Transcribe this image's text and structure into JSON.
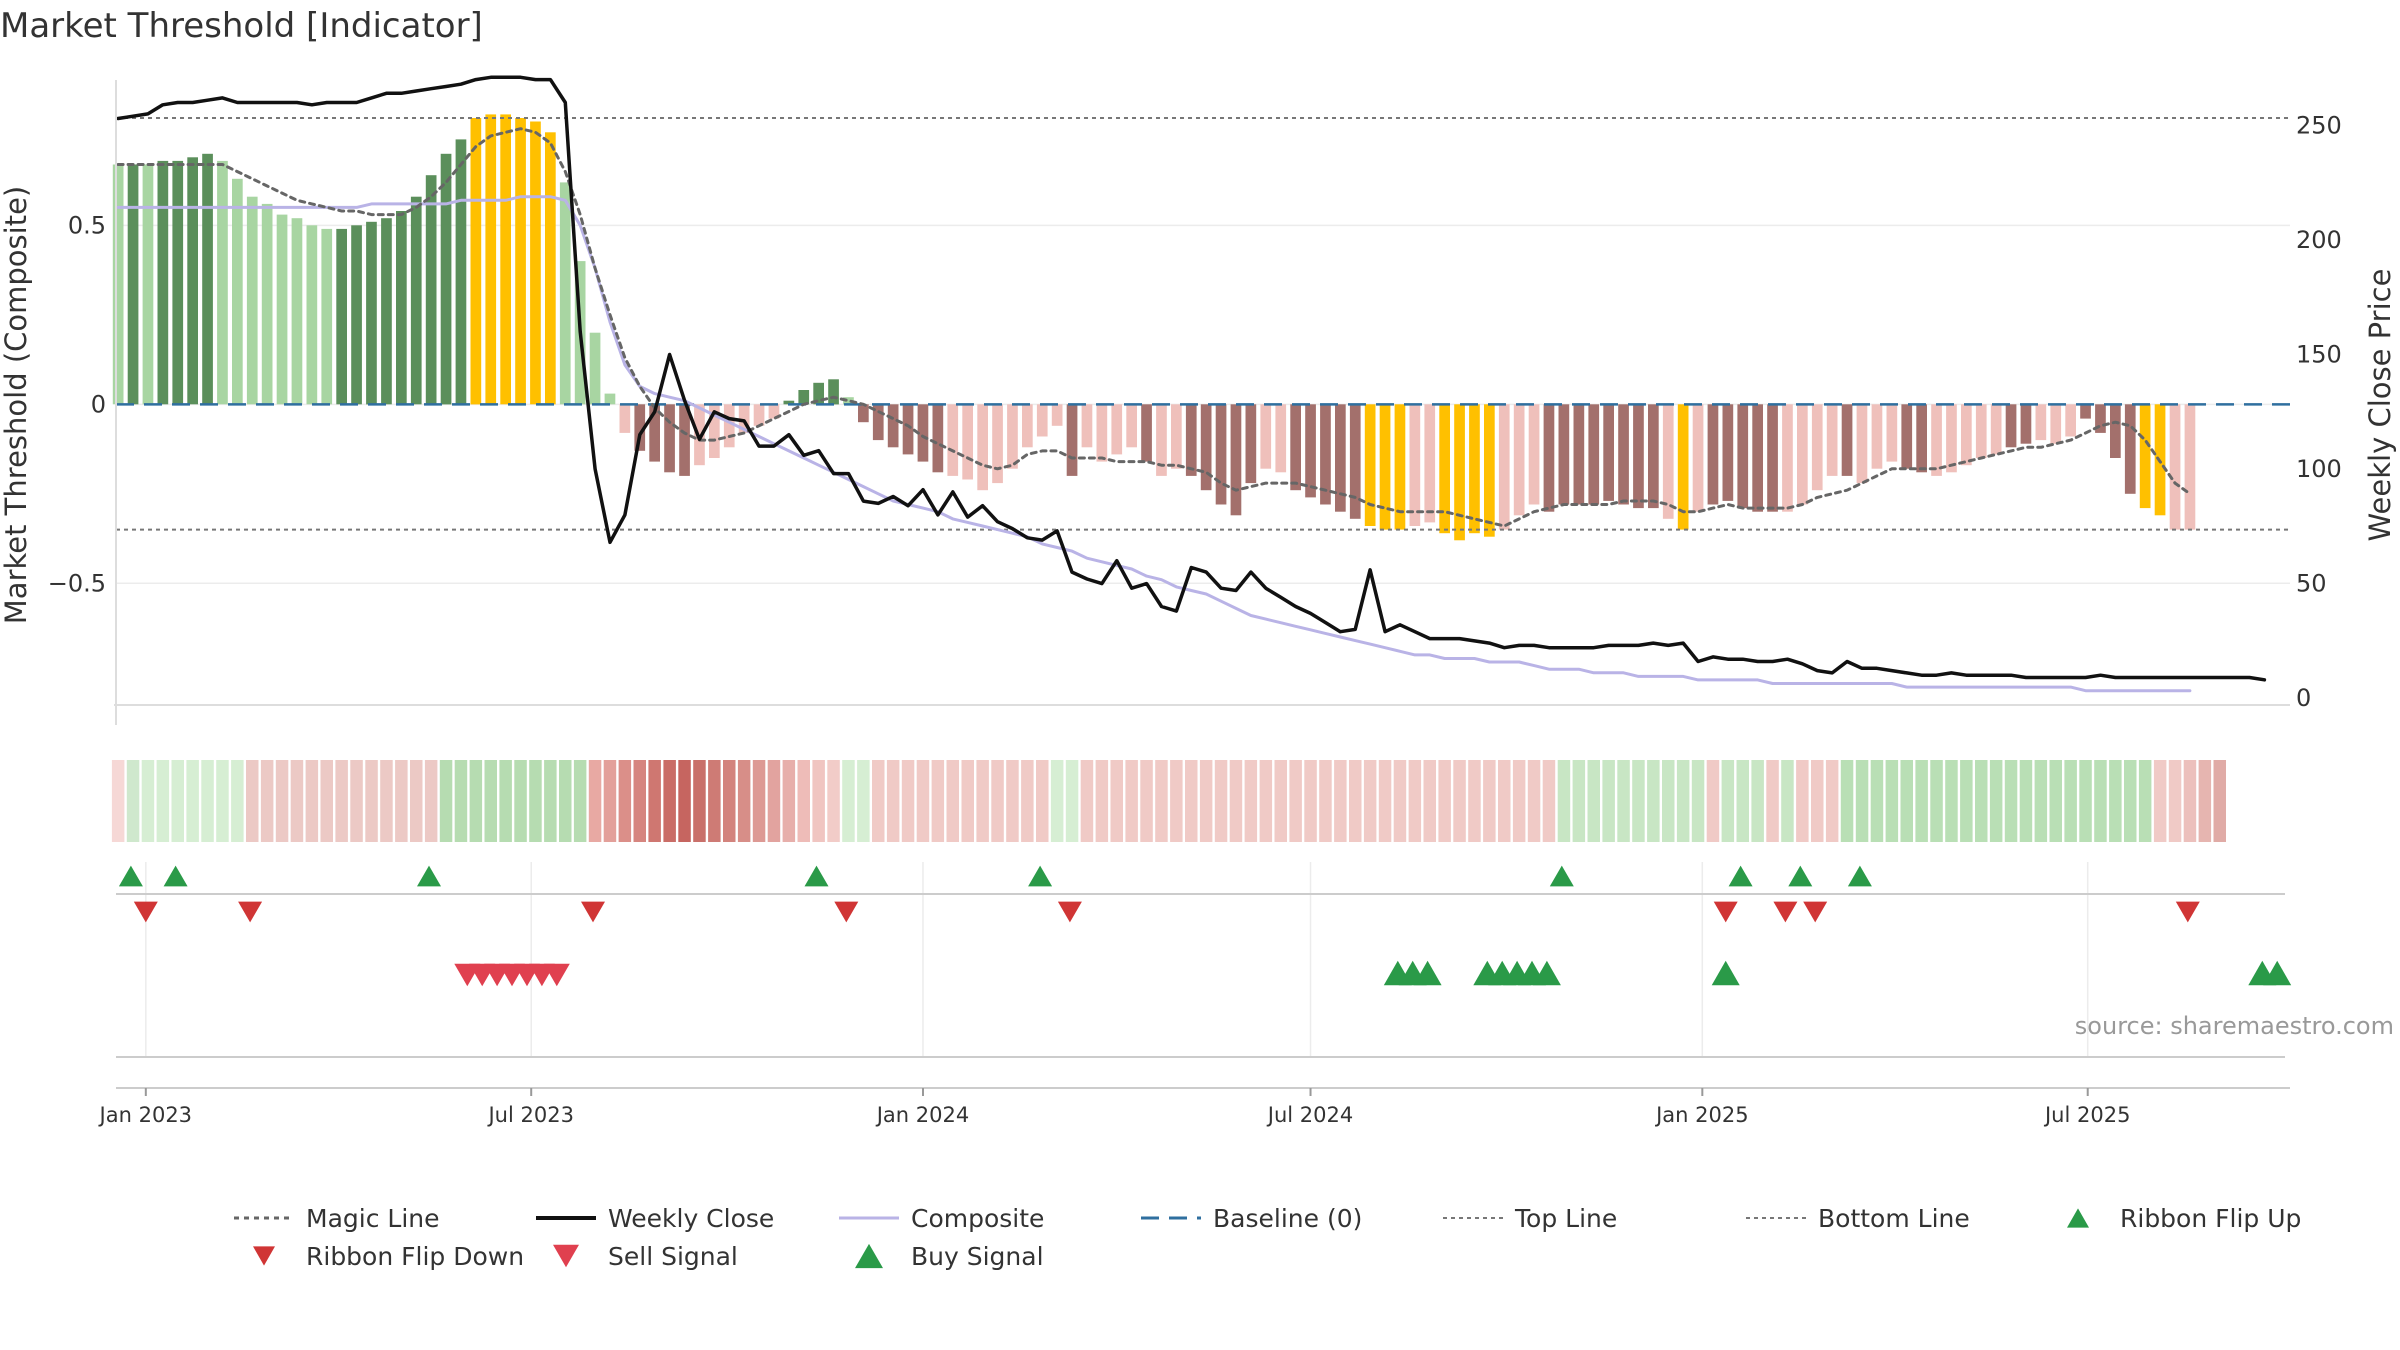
{
  "title": "Market Threshold [Indicator]",
  "source": "source: sharemaestro.com",
  "colors": {
    "bull_strong": "#5b8f5b",
    "bull_weak": "#a8d5a2",
    "bear_strong": "#a3706c",
    "bear_weak": "#efc0bb",
    "extreme": "#ffc000",
    "magic_line": "#666666",
    "weekly_close": "#111111",
    "composite": "#b9b3e6",
    "baseline": "#2f6f9f",
    "threshold_line": "#777777",
    "flip_up": "#2a9a48",
    "flip_down": "#d03535",
    "sell": "#e0404f",
    "buy": "#2a9a48"
  },
  "chart_data": {
    "type": "bar",
    "title": "Market Threshold [Indicator]",
    "ylabel": "Market Threshold (Composite)",
    "y2label": "Weekly Close Price",
    "ylim": [
      -0.84,
      0.92
    ],
    "y2lim": [
      -3,
      272
    ],
    "y_ticks": [
      {
        "value": 0.5,
        "label": "0.5"
      },
      {
        "value": 0,
        "label": "0"
      },
      {
        "value": -0.5,
        "label": "−0.5"
      }
    ],
    "y2_ticks": [
      {
        "value": 250,
        "label": "250"
      },
      {
        "value": 200,
        "label": "200"
      },
      {
        "value": 150,
        "label": "150"
      },
      {
        "value": 100,
        "label": "100"
      },
      {
        "value": 50,
        "label": "50"
      },
      {
        "value": 0,
        "label": "0"
      }
    ],
    "x_start": "2022-12-18",
    "x_end": "2025-10-04",
    "x_ticks": [
      {
        "date": "2023-01-01",
        "label": "Jan 2023"
      },
      {
        "date": "2023-07-01",
        "label": "Jul 2023"
      },
      {
        "date": "2024-01-01",
        "label": "Jan 2024"
      },
      {
        "date": "2024-07-01",
        "label": "Jul 2024"
      },
      {
        "date": "2025-01-01",
        "label": "Jan 2025"
      },
      {
        "date": "2025-07-01",
        "label": "Jul 2025"
      }
    ],
    "bars_start": "2022-12-19",
    "bar_interval_days": 7,
    "top_line": 0.8,
    "bottom_line": -0.35,
    "baseline": 0,
    "composite_values": [
      0.67,
      0.67,
      0.67,
      0.68,
      0.68,
      0.69,
      0.7,
      0.68,
      0.63,
      0.58,
      0.56,
      0.53,
      0.52,
      0.5,
      0.49,
      0.49,
      0.5,
      0.51,
      0.52,
      0.54,
      0.58,
      0.64,
      0.7,
      0.74,
      0.8,
      0.81,
      0.81,
      0.8,
      0.79,
      0.76,
      0.62,
      0.4,
      0.2,
      0.03,
      -0.08,
      -0.13,
      -0.16,
      -0.19,
      -0.2,
      -0.17,
      -0.15,
      -0.12,
      -0.08,
      -0.06,
      -0.04,
      0.01,
      0.04,
      0.06,
      0.07,
      0.02,
      -0.05,
      -0.1,
      -0.12,
      -0.14,
      -0.16,
      -0.19,
      -0.2,
      -0.21,
      -0.24,
      -0.22,
      -0.18,
      -0.12,
      -0.09,
      -0.06,
      -0.2,
      -0.12,
      -0.16,
      -0.14,
      -0.12,
      -0.16,
      -0.2,
      -0.18,
      -0.2,
      -0.24,
      -0.28,
      -0.31,
      -0.22,
      -0.18,
      -0.19,
      -0.24,
      -0.26,
      -0.28,
      -0.3,
      -0.32,
      -0.34,
      -0.35,
      -0.35,
      -0.34,
      -0.33,
      -0.36,
      -0.38,
      -0.36,
      -0.37,
      -0.35,
      -0.31,
      -0.28,
      -0.3,
      -0.28,
      -0.28,
      -0.28,
      -0.27,
      -0.28,
      -0.29,
      -0.29,
      -0.32,
      -0.35,
      -0.3,
      -0.28,
      -0.27,
      -0.29,
      -0.3,
      -0.3,
      -0.3,
      -0.28,
      -0.24,
      -0.2,
      -0.2,
      -0.22,
      -0.18,
      -0.16,
      -0.18,
      -0.19,
      -0.2,
      -0.19,
      -0.17,
      -0.15,
      -0.14,
      -0.12,
      -0.11,
      -0.1,
      -0.11,
      -0.09,
      -0.04,
      -0.08,
      -0.15,
      -0.25,
      -0.29,
      -0.31,
      -0.35,
      -0.35
    ],
    "bar_colors": [
      "bull_weak",
      "bull_strong",
      "bull_weak",
      "bull_strong",
      "bull_strong",
      "bull_strong",
      "bull_strong",
      "bull_weak",
      "bull_weak",
      "bull_weak",
      "bull_weak",
      "bull_weak",
      "bull_weak",
      "bull_weak",
      "bull_weak",
      "bull_strong",
      "bull_strong",
      "bull_strong",
      "bull_strong",
      "bull_strong",
      "bull_strong",
      "bull_strong",
      "bull_strong",
      "bull_strong",
      "extreme",
      "extreme",
      "extreme",
      "extreme",
      "extreme",
      "extreme",
      "bull_weak",
      "bull_weak",
      "bull_weak",
      "bull_weak",
      "bear_weak",
      "bear_strong",
      "bear_strong",
      "bear_strong",
      "bear_strong",
      "bear_weak",
      "bear_weak",
      "bear_weak",
      "bear_weak",
      "bear_weak",
      "bear_weak",
      "bull_strong",
      "bull_strong",
      "bull_strong",
      "bull_strong",
      "bull_weak",
      "bear_strong",
      "bear_strong",
      "bear_strong",
      "bear_strong",
      "bear_strong",
      "bear_strong",
      "bear_weak",
      "bear_weak",
      "bear_weak",
      "bear_weak",
      "bear_weak",
      "bear_weak",
      "bear_weak",
      "bear_weak",
      "bear_strong",
      "bear_weak",
      "bear_weak",
      "bear_weak",
      "bear_weak",
      "bear_strong",
      "bear_weak",
      "bear_weak",
      "bear_strong",
      "bear_strong",
      "bear_strong",
      "bear_strong",
      "bear_strong",
      "bear_weak",
      "bear_weak",
      "bear_strong",
      "bear_strong",
      "bear_strong",
      "bear_strong",
      "bear_strong",
      "extreme",
      "extreme",
      "extreme",
      "bear_weak",
      "bear_weak",
      "extreme",
      "extreme",
      "extreme",
      "extreme",
      "bear_weak",
      "bear_weak",
      "bear_weak",
      "bear_strong",
      "bear_strong",
      "bear_strong",
      "bear_strong",
      "bear_strong",
      "bear_strong",
      "bear_strong",
      "bear_strong",
      "bear_weak",
      "extreme",
      "bear_weak",
      "bear_strong",
      "bear_strong",
      "bear_strong",
      "bear_strong",
      "bear_strong",
      "bear_weak",
      "bear_weak",
      "bear_weak",
      "bear_weak",
      "bear_strong",
      "bear_weak",
      "bear_weak",
      "bear_weak",
      "bear_strong",
      "bear_strong",
      "bear_weak",
      "bear_weak",
      "bear_weak",
      "bear_weak",
      "bear_weak",
      "bear_strong",
      "bear_strong",
      "bear_weak",
      "bear_weak",
      "bear_weak",
      "bear_strong",
      "bear_strong",
      "bear_strong",
      "bear_strong",
      "extreme",
      "extreme"
    ],
    "series": [
      {
        "key": "magic_line",
        "name": "Magic Line",
        "values": [
          0.67,
          0.67,
          0.67,
          0.67,
          0.67,
          0.67,
          0.67,
          0.67,
          0.65,
          0.63,
          0.61,
          0.59,
          0.57,
          0.56,
          0.55,
          0.54,
          0.54,
          0.53,
          0.53,
          0.53,
          0.55,
          0.58,
          0.62,
          0.67,
          0.72,
          0.75,
          0.76,
          0.77,
          0.76,
          0.73,
          0.65,
          0.53,
          0.38,
          0.25,
          0.13,
          0.05,
          -0.01,
          -0.05,
          -0.08,
          -0.1,
          -0.1,
          -0.09,
          -0.08,
          -0.06,
          -0.04,
          -0.02,
          0.0,
          0.01,
          0.02,
          0.01,
          0.0,
          -0.02,
          -0.04,
          -0.06,
          -0.09,
          -0.11,
          -0.13,
          -0.15,
          -0.17,
          -0.18,
          -0.17,
          -0.14,
          -0.13,
          -0.13,
          -0.15,
          -0.15,
          -0.15,
          -0.16,
          -0.16,
          -0.16,
          -0.17,
          -0.17,
          -0.18,
          -0.19,
          -0.22,
          -0.24,
          -0.23,
          -0.22,
          -0.22,
          -0.22,
          -0.23,
          -0.24,
          -0.25,
          -0.26,
          -0.28,
          -0.29,
          -0.3,
          -0.3,
          -0.3,
          -0.3,
          -0.31,
          -0.32,
          -0.33,
          -0.34,
          -0.32,
          -0.3,
          -0.29,
          -0.28,
          -0.28,
          -0.28,
          -0.28,
          -0.27,
          -0.27,
          -0.27,
          -0.28,
          -0.3,
          -0.3,
          -0.29,
          -0.28,
          -0.29,
          -0.29,
          -0.29,
          -0.29,
          -0.28,
          -0.26,
          -0.25,
          -0.24,
          -0.22,
          -0.2,
          -0.18,
          -0.18,
          -0.18,
          -0.18,
          -0.17,
          -0.16,
          -0.15,
          -0.14,
          -0.13,
          -0.12,
          -0.12,
          -0.11,
          -0.1,
          -0.08,
          -0.06,
          -0.05,
          -0.06,
          -0.1,
          -0.16,
          -0.22,
          -0.25
        ]
      },
      {
        "key": "weekly_close",
        "name": "Weekly Close",
        "values": [
          253,
          254,
          255,
          259,
          260,
          260,
          261,
          262,
          260,
          260,
          260,
          260,
          260,
          259,
          260,
          260,
          260,
          262,
          264,
          264,
          265,
          266,
          267,
          268,
          270,
          271,
          271,
          271,
          270,
          270,
          260,
          160,
          100,
          68,
          80,
          115,
          125,
          150,
          130,
          113,
          125,
          122,
          121,
          110,
          110,
          115,
          106,
          108,
          98,
          98,
          86,
          85,
          88,
          84,
          91,
          80,
          90,
          79,
          84,
          77,
          74,
          70,
          69,
          73,
          55,
          52,
          50,
          60,
          48,
          50,
          40,
          38,
          57,
          55,
          48,
          47,
          55,
          48,
          44,
          40,
          37,
          33,
          29,
          30,
          56,
          29,
          32,
          29,
          26,
          26,
          26,
          25,
          24,
          22,
          23,
          23,
          22,
          22,
          22,
          22,
          23,
          23,
          23,
          24,
          23,
          24,
          16,
          18,
          17,
          17,
          16,
          16,
          17,
          15,
          12,
          11,
          16,
          13,
          13,
          12,
          11,
          10,
          10,
          11,
          10,
          10,
          10,
          10,
          9,
          9,
          9,
          9,
          9,
          10,
          9,
          9,
          9,
          9,
          9,
          9,
          9,
          9,
          9,
          9,
          8
        ]
      },
      {
        "key": "composite",
        "name": "Composite",
        "values": [
          0.55,
          0.55,
          0.55,
          0.55,
          0.55,
          0.55,
          0.55,
          0.55,
          0.55,
          0.55,
          0.55,
          0.55,
          0.55,
          0.55,
          0.55,
          0.55,
          0.55,
          0.56,
          0.56,
          0.56,
          0.56,
          0.56,
          0.56,
          0.57,
          0.57,
          0.57,
          0.57,
          0.58,
          0.58,
          0.58,
          0.57,
          0.5,
          0.38,
          0.23,
          0.11,
          0.05,
          0.03,
          0.02,
          0.01,
          -0.01,
          -0.03,
          -0.05,
          -0.07,
          -0.09,
          -0.11,
          -0.13,
          -0.15,
          -0.17,
          -0.19,
          -0.21,
          -0.23,
          -0.25,
          -0.27,
          -0.28,
          -0.29,
          -0.3,
          -0.32,
          -0.33,
          -0.34,
          -0.35,
          -0.36,
          -0.37,
          -0.39,
          -0.4,
          -0.41,
          -0.43,
          -0.44,
          -0.45,
          -0.46,
          -0.48,
          -0.49,
          -0.51,
          -0.52,
          -0.53,
          -0.55,
          -0.57,
          -0.59,
          -0.6,
          -0.61,
          -0.62,
          -0.63,
          -0.64,
          -0.65,
          -0.66,
          -0.67,
          -0.68,
          -0.69,
          -0.7,
          -0.7,
          -0.71,
          -0.71,
          -0.71,
          -0.72,
          -0.72,
          -0.72,
          -0.73,
          -0.74,
          -0.74,
          -0.74,
          -0.75,
          -0.75,
          -0.75,
          -0.76,
          -0.76,
          -0.76,
          -0.76,
          -0.77,
          -0.77,
          -0.77,
          -0.77,
          -0.77,
          -0.78,
          -0.78,
          -0.78,
          -0.78,
          -0.78,
          -0.78,
          -0.78,
          -0.78,
          -0.78,
          -0.79,
          -0.79,
          -0.79,
          -0.79,
          -0.79,
          -0.79,
          -0.79,
          -0.79,
          -0.79,
          -0.79,
          -0.79,
          -0.79,
          -0.8,
          -0.8,
          -0.8,
          -0.8,
          -0.8,
          -0.8,
          -0.8,
          -0.8
        ]
      },
      {
        "key": "baseline",
        "name": "Baseline (0)"
      },
      {
        "key": "top_line",
        "name": "Top Line"
      },
      {
        "key": "bottom_line",
        "name": "Bottom Line"
      }
    ],
    "ribbon_colors": [
      "#f6d8d6",
      "#cfe8cd",
      "#d6eed3",
      "#d6eed3",
      "#d6eed3",
      "#d6eed3",
      "#d6eed3",
      "#d6eed3",
      "#d6eed3",
      "#ecc9c5",
      "#ecc9c5",
      "#ecc9c5",
      "#ecc9c5",
      "#ecc9c5",
      "#ecc9c5",
      "#ecc9c5",
      "#ecc9c5",
      "#ecc9c5",
      "#ecc9c5",
      "#ecc9c5",
      "#ecc9c5",
      "#ecc9c5",
      "#b6dcb1",
      "#b6dcb1",
      "#b6dcb1",
      "#b6dcb1",
      "#b6dcb1",
      "#b6dcb1",
      "#b6dcb1",
      "#b6dcb1",
      "#b6dcb1",
      "#b6dcb1",
      "#e8a9a3",
      "#e3a09a",
      "#db8f89",
      "#d6857f",
      "#cf7771",
      "#ca6d67",
      "#c66560",
      "#c9706a",
      "#ce7b75",
      "#d3837d",
      "#d78e88",
      "#dd9994",
      "#e2a39f",
      "#e7afab",
      "#eebcb8",
      "#f0c5c1",
      "#f2ccc8",
      "#d6eed3",
      "#d6eed3",
      "#f0cac6",
      "#f0cac6",
      "#f0cac6",
      "#f0cac6",
      "#f0cac6",
      "#f0cac6",
      "#f0cac6",
      "#f0cac6",
      "#f0cac6",
      "#f0cac6",
      "#f0cac6",
      "#f0cac6",
      "#d6eed3",
      "#d6eed3",
      "#f0cac6",
      "#f0cac6",
      "#f0cac6",
      "#f0cac6",
      "#f0cac6",
      "#f0cac6",
      "#f0cac6",
      "#f0cac6",
      "#f0cac6",
      "#f0cac6",
      "#f0cac6",
      "#f0cac6",
      "#f0cac6",
      "#f0cac6",
      "#f0cac6",
      "#f0cac6",
      "#f0cac6",
      "#f0cac6",
      "#f0cac6",
      "#f0cac6",
      "#f0cac6",
      "#f0cac6",
      "#f0cac6",
      "#f0cac6",
      "#f0cac6",
      "#f0cac6",
      "#f0cac6",
      "#f0cac6",
      "#f0cac6",
      "#f0cac6",
      "#f0cac6",
      "#f0cac6",
      "#c8e6c4",
      "#c8e6c4",
      "#c8e6c4",
      "#c8e6c4",
      "#c8e6c4",
      "#c8e6c4",
      "#c8e6c4",
      "#c8e6c4",
      "#c8e6c4",
      "#c8e6c4",
      "#f0cac6",
      "#c8e6c4",
      "#c8e6c4",
      "#c8e6c4",
      "#f0cac6",
      "#c8e6c4",
      "#f0cac6",
      "#f0cac6",
      "#f0cac6",
      "#b9dfb5",
      "#b9dfb5",
      "#b9dfb5",
      "#b9dfb5",
      "#b9dfb5",
      "#b9dfb5",
      "#b9dfb5",
      "#b9dfb5",
      "#b9dfb5",
      "#b9dfb5",
      "#b9dfb5",
      "#b9dfb5",
      "#b9dfb5",
      "#b9dfb5",
      "#b9dfb5",
      "#b9dfb5",
      "#b9dfb5",
      "#b9dfb5",
      "#b9dfb5",
      "#b9dfb5",
      "#b9dfb5",
      "#f0cac6",
      "#f0cac6",
      "#ecc0bc",
      "#e6b5b0",
      "#e0aba6"
    ],
    "ribbon_flip_up": [
      "2022-12-25",
      "2023-01-15",
      "2023-05-14",
      "2023-11-12",
      "2024-02-25",
      "2024-10-27",
      "2025-01-19",
      "2025-02-16",
      "2025-03-16"
    ],
    "ribbon_flip_down": [
      "2023-01-01",
      "2023-02-19",
      "2023-07-30",
      "2023-11-26",
      "2024-03-10",
      "2025-01-12",
      "2025-02-09",
      "2025-02-23",
      "2025-08-17"
    ],
    "sell_signals": [
      "2023-06-01",
      "2023-06-08",
      "2023-06-15",
      "2023-06-22",
      "2023-06-29",
      "2023-07-06",
      "2023-07-13"
    ],
    "buy_signals": [
      "2024-08-11",
      "2024-08-18",
      "2024-08-25",
      "2024-09-22",
      "2024-09-29",
      "2024-10-06",
      "2024-10-13",
      "2024-10-20",
      "2025-01-12",
      "2025-09-21",
      "2025-09-28"
    ],
    "legend": [
      {
        "key": "magic_line",
        "label": "Magic Line",
        "kind": "dotted",
        "color": "#666666"
      },
      {
        "key": "weekly_close",
        "label": "Weekly Close",
        "kind": "solid",
        "color": "#111111"
      },
      {
        "key": "composite",
        "label": "Composite",
        "kind": "solid-light",
        "color": "#b9b3e6"
      },
      {
        "key": "baseline",
        "label": "Baseline (0)",
        "kind": "dashed",
        "color": "#2f6f9f"
      },
      {
        "key": "top_line",
        "label": "Top Line",
        "kind": "thin-dotted",
        "color": "#777777"
      },
      {
        "key": "bottom_line",
        "label": "Bottom Line",
        "kind": "thin-dotted",
        "color": "#777777"
      },
      {
        "key": "ribbon_flip_up",
        "label": "Ribbon Flip Up",
        "kind": "tri-up-small",
        "color": "#2a9a48"
      },
      {
        "key": "ribbon_flip_down",
        "label": "Ribbon Flip Down",
        "kind": "tri-down-small",
        "color": "#d03535"
      },
      {
        "key": "sell_signal",
        "label": "Sell Signal",
        "kind": "tri-down",
        "color": "#e0404f"
      },
      {
        "key": "buy_signal",
        "label": "Buy Signal",
        "kind": "tri-up",
        "color": "#2a9a48"
      }
    ],
    "grid": true,
    "legend_position": "bottom"
  }
}
